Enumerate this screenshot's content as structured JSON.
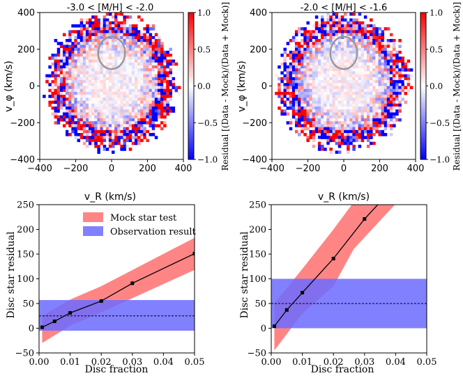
{
  "chart_data": [
    {
      "type": "heatmap",
      "title": "-3.0 < [M/H] < -2.0",
      "xlabel": "v_R (km/s)",
      "ylabel": "v_φ (km/s)",
      "xlim": [
        -400,
        400
      ],
      "ylim": [
        -400,
        400
      ],
      "xticks": [
        "−400",
        "−200",
        "0",
        "200",
        "400"
      ],
      "yticks": [
        "400",
        "200",
        "0",
        "−200",
        "−400"
      ],
      "colorbar": {
        "label": "Residual [(Data - Mock)/(Data + Mock)]",
        "range": [
          -1.0,
          1.0
        ],
        "ticks": [
          "1.0",
          "0.5",
          "0.0",
          "−0.5",
          "−1.0"
        ],
        "colors": [
          "#0000ff",
          "#ffffff",
          "#ff0000"
        ]
      },
      "ellipse": {
        "center": [
          0,
          180
        ],
        "rx": 150,
        "ry": 110
      },
      "seed": 11
    },
    {
      "type": "heatmap",
      "title": "-2.0 < [M/H] < -1.6",
      "xlabel": "v_R (km/s)",
      "ylabel": "v_φ (km/s)",
      "xlim": [
        -400,
        400
      ],
      "ylim": [
        -400,
        400
      ],
      "xticks": [
        "−400",
        "−200",
        "0",
        "200",
        "400"
      ],
      "yticks": [
        "400",
        "200",
        "0",
        "−200",
        "−400"
      ],
      "colorbar": {
        "label": "Residual [(Data - Mock)/(Data + Mock)]",
        "range": [
          -1.0,
          1.0
        ],
        "ticks": [
          "1.0",
          "0.5",
          "0.0",
          "−0.5",
          "−1.0"
        ],
        "colors": [
          "#0000ff",
          "#ffffff",
          "#ff0000"
        ]
      },
      "ellipse": {
        "center": [
          0,
          180
        ],
        "rx": 150,
        "ry": 110
      },
      "seed": 29
    },
    {
      "type": "line",
      "xlabel": "Disc fraction",
      "ylabel": "Disc star residual",
      "xlim": [
        0.0,
        0.05
      ],
      "ylim": [
        -50,
        250
      ],
      "xticks": [
        0.0,
        0.01,
        0.02,
        0.03,
        0.04,
        0.05
      ],
      "xtick_labels": [
        "0.00",
        "0.01",
        "0.02",
        "0.03",
        "0.04",
        "0.05"
      ],
      "yticks": [
        -50,
        0,
        50,
        100,
        150,
        200,
        250
      ],
      "ytick_labels": [
        "−50",
        "0",
        "50",
        "100",
        "150",
        "200",
        "250"
      ],
      "x": [
        0.001,
        0.005,
        0.01,
        0.02,
        0.03,
        0.05
      ],
      "y": [
        2,
        14,
        31,
        55,
        91,
        151
      ],
      "mock_band": {
        "x": [
          0.001,
          0.01,
          0.02,
          0.05
        ],
        "lower": [
          -30,
          5,
          32,
          118
        ],
        "upper": [
          25,
          58,
          85,
          183
        ],
        "color": "#ff6666"
      },
      "observation_band": {
        "lower": -5,
        "upper": 57,
        "center": 25,
        "color": "#6b6bff"
      },
      "legend": {
        "position": "top-right",
        "entries": [
          "Mock star test",
          "Observation result"
        ]
      }
    },
    {
      "type": "line",
      "xlabel": "Disc fraction",
      "ylabel": "Disc star residual",
      "xlim": [
        0.0,
        0.05
      ],
      "ylim": [
        -50,
        250
      ],
      "xticks": [
        0.0,
        0.01,
        0.02,
        0.03,
        0.04,
        0.05
      ],
      "xtick_labels": [
        "0.00",
        "0.01",
        "0.02",
        "0.03",
        "0.04",
        "0.05"
      ],
      "yticks": [
        -50,
        0,
        50,
        100,
        150,
        200,
        250
      ],
      "ytick_labels": [
        "−50",
        "0",
        "50",
        "100",
        "150",
        "200",
        "250"
      ],
      "x": [
        0.001,
        0.005,
        0.01,
        0.02,
        0.03,
        0.035
      ],
      "y": [
        4,
        37,
        72,
        141,
        221,
        255
      ],
      "mock_band": {
        "x": [
          0.001,
          0.01,
          0.02,
          0.0265,
          0.0405
        ],
        "lower": [
          -45,
          30,
          85,
          160,
          255
        ],
        "upper": [
          50,
          120,
          200,
          255,
          255
        ],
        "color": "#ff6666"
      },
      "observation_band": {
        "lower": 0,
        "upper": 100,
        "center": 50,
        "color": "#6b6bff"
      },
      "legend": null
    }
  ]
}
